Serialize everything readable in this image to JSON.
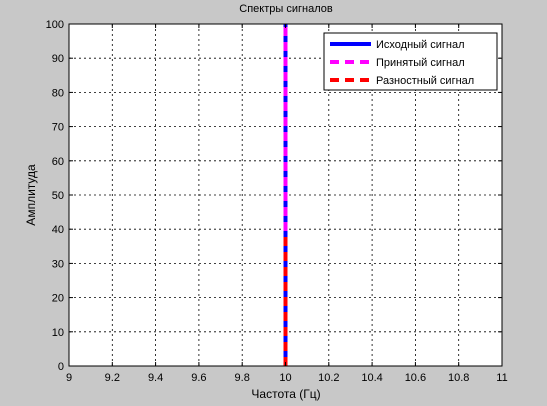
{
  "chart_data": {
    "type": "line",
    "title": "Спектры сигналов",
    "xlabel": "Частота (Гц)",
    "ylabel": "Амплитуда",
    "xlim": [
      9,
      11
    ],
    "ylim": [
      0,
      100
    ],
    "xticks": [
      "9",
      "9.2",
      "9.4",
      "9.6",
      "9.8",
      "10",
      "10.2",
      "10.4",
      "10.6",
      "10.8",
      "11"
    ],
    "yticks": [
      "0",
      "10",
      "20",
      "30",
      "40",
      "50",
      "60",
      "70",
      "80",
      "90",
      "100"
    ],
    "grid": true,
    "legend_position": "top-right",
    "series": [
      {
        "name": "Исходный сигнал",
        "color": "#0000ff",
        "style": "solid",
        "x": [
          10,
          10
        ],
        "y": [
          0,
          100
        ]
      },
      {
        "name": "Принятый сигнал",
        "color": "#ff00ff",
        "style": "dashed",
        "x": [
          10,
          10
        ],
        "y": [
          0,
          100
        ]
      },
      {
        "name": "Разностный сигнал",
        "color": "#ff0000",
        "style": "dashed",
        "x": [
          10,
          10
        ],
        "y": [
          0,
          39
        ]
      }
    ]
  }
}
